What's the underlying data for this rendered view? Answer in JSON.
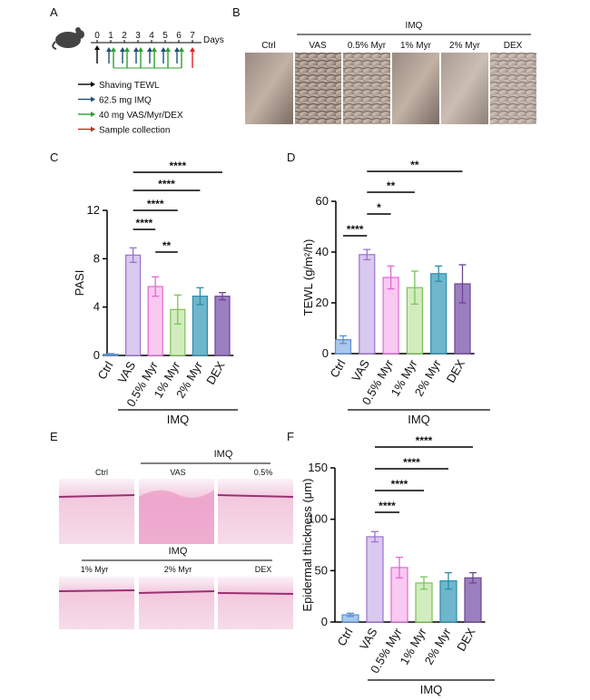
{
  "timeline": {
    "panel": "A",
    "days": [
      "0",
      "1",
      "2",
      "3",
      "4",
      "5",
      "6",
      "7"
    ],
    "unit": "Days",
    "legend": [
      "Shaving  TEWL",
      "62.5 mg IMQ",
      "40 mg VAS/Myr/DEX",
      "Sample collection"
    ]
  },
  "photos": {
    "panel": "B",
    "group": "IMQ",
    "labels": [
      "Ctrl",
      "VAS",
      "0.5% Myr",
      "1% Myr",
      "2% Myr",
      "DEX"
    ]
  },
  "histology": {
    "panel": "E",
    "rows": [
      {
        "group": "IMQ",
        "labels": [
          "Ctrl",
          "VAS",
          "0.5%"
        ]
      },
      {
        "group": "IMQ",
        "labels": [
          "1% Myr",
          "2% Myr",
          "DEX"
        ]
      }
    ]
  },
  "chart_data": [
    {
      "type": "bar",
      "panel": "C",
      "y_label": "PASI",
      "categories": [
        "Ctrl",
        "VAS",
        "0.5% Myr",
        "1% Myr",
        "2% Myr",
        "DEX"
      ],
      "values": [
        0.1,
        8.3,
        5.7,
        3.8,
        4.9,
        4.9
      ],
      "errors": [
        0.05,
        0.6,
        0.8,
        1.2,
        0.7,
        0.3
      ],
      "colors": [
        "#a9c8ec",
        "#d9c8ef",
        "#f9c9f1",
        "#d3ecbf",
        "#6fb6cc",
        "#9c7fc0"
      ],
      "edge_colors": [
        "#5b8fd1",
        "#9b72cf",
        "#e06ad2",
        "#7cc25a",
        "#2a8cab",
        "#6a4693"
      ],
      "ylim": [
        0,
        12
      ],
      "yticks": [
        0,
        4,
        8,
        12
      ],
      "group_label": "IMQ",
      "comparisons": [
        {
          "label": "****",
          "groups": [
            "VAS",
            "DEX"
          ]
        },
        {
          "label": "****",
          "groups": [
            "VAS",
            "2% Myr"
          ]
        },
        {
          "label": "****",
          "groups": [
            "VAS",
            "1% Myr"
          ]
        },
        {
          "label": "****",
          "groups": [
            "VAS",
            "0.5% Myr"
          ]
        },
        {
          "label": "**",
          "groups": [
            "0.5% Myr",
            "1% Myr"
          ]
        }
      ]
    },
    {
      "type": "bar",
      "panel": "D",
      "y_label": "TEWL (g/m²/h)",
      "categories": [
        "Ctrl",
        "VAS",
        "0.5% Myr",
        "1% Myr",
        "2% Myr",
        "DEX"
      ],
      "values": [
        5.5,
        39,
        30,
        26,
        31.5,
        27.5
      ],
      "errors": [
        1.5,
        2,
        4.5,
        6.5,
        3,
        7.5
      ],
      "colors": [
        "#a9c8ec",
        "#d9c8ef",
        "#f9c9f1",
        "#d3ecbf",
        "#6fb6cc",
        "#9c7fc0"
      ],
      "edge_colors": [
        "#5b8fd1",
        "#9b72cf",
        "#e06ad2",
        "#7cc25a",
        "#2a8cab",
        "#6a4693"
      ],
      "ylim": [
        0,
        60
      ],
      "yticks": [
        0,
        20,
        40,
        60
      ],
      "group_label": "IMQ",
      "comparisons": [
        {
          "label": "**",
          "groups": [
            "VAS",
            "DEX"
          ]
        },
        {
          "label": "**",
          "groups": [
            "VAS",
            "1% Myr"
          ]
        },
        {
          "label": "*",
          "groups": [
            "VAS",
            "0.5% Myr"
          ]
        },
        {
          "label": "****",
          "groups": [
            "Ctrl",
            "VAS"
          ]
        }
      ]
    },
    {
      "type": "bar",
      "panel": "F",
      "y_label": "Epidermal thickness (μm)",
      "categories": [
        "Ctrl",
        "VAS",
        "0.5% Myr",
        "1% Myr",
        "2% Myr",
        "DEX"
      ],
      "values": [
        7,
        83,
        53,
        38,
        40,
        43
      ],
      "errors": [
        1.5,
        5,
        10,
        6,
        8,
        5
      ],
      "colors": [
        "#a9c8ec",
        "#d9c8ef",
        "#f9c9f1",
        "#d3ecbf",
        "#6fb6cc",
        "#9c7fc0"
      ],
      "edge_colors": [
        "#5b8fd1",
        "#9b72cf",
        "#e06ad2",
        "#7cc25a",
        "#2a8cab",
        "#6a4693"
      ],
      "ylim": [
        0,
        150
      ],
      "yticks": [
        0,
        50,
        100,
        150
      ],
      "group_label": "IMQ",
      "comparisons": [
        {
          "label": "****",
          "groups": [
            "VAS",
            "DEX"
          ]
        },
        {
          "label": "****",
          "groups": [
            "VAS",
            "2% Myr"
          ]
        },
        {
          "label": "****",
          "groups": [
            "VAS",
            "1% Myr"
          ]
        },
        {
          "label": "****",
          "groups": [
            "VAS",
            "0.5% Myr"
          ]
        }
      ]
    }
  ]
}
